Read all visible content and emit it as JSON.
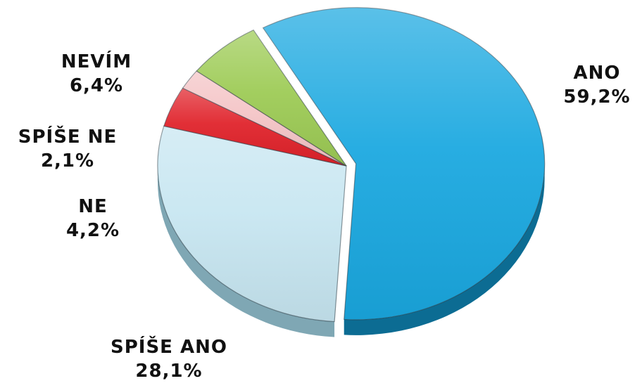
{
  "chart_data": {
    "type": "pie",
    "style": "3d",
    "slices": [
      {
        "label": "ANO",
        "value_text": "59,2%",
        "value": 59.2,
        "color": "#1AA8E0",
        "side_color": "#0C6C93"
      },
      {
        "label": "SPÍŠE ANO",
        "value_text": "28,1%",
        "value": 28.1,
        "color": "#C7E6F1",
        "side_color": "#7FA7B4"
      },
      {
        "label": "NE",
        "value_text": "4,2%",
        "value": 4.2,
        "color": "#E0222A",
        "side_color": "#8E1216"
      },
      {
        "label": "SPÍŠE NE",
        "value_text": "2,1%",
        "value": 2.1,
        "color": "#F4C4C6",
        "side_color": "#B48A8C"
      },
      {
        "label": "NEVÍM",
        "value_text": "6,4%",
        "value": 6.4,
        "color": "#9DCB55",
        "side_color": "#5E8A26"
      }
    ]
  }
}
